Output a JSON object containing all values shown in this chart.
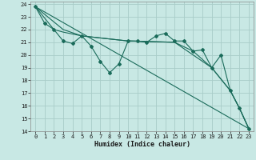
{
  "xlabel": "Humidex (Indice chaleur)",
  "xlim": [
    -0.5,
    23.5
  ],
  "ylim": [
    14,
    24.2
  ],
  "yticks": [
    14,
    15,
    16,
    17,
    18,
    19,
    20,
    21,
    22,
    23,
    24
  ],
  "xticks": [
    0,
    1,
    2,
    3,
    4,
    5,
    6,
    7,
    8,
    9,
    10,
    11,
    12,
    13,
    14,
    15,
    16,
    17,
    18,
    19,
    20,
    21,
    22,
    23
  ],
  "bg_color": "#c8e8e4",
  "grid_color": "#a8ccc8",
  "line_color": "#1a6b5a",
  "lines": [
    {
      "x": [
        0,
        1,
        2,
        3,
        4,
        5,
        6,
        7,
        8,
        9,
        10,
        11,
        12,
        13,
        14,
        15,
        16,
        17,
        18,
        19,
        20,
        21,
        22,
        23
      ],
      "y": [
        23.8,
        22.5,
        22.0,
        21.1,
        20.9,
        21.5,
        20.7,
        19.5,
        18.6,
        19.3,
        21.1,
        21.1,
        21.0,
        21.5,
        21.7,
        21.1,
        21.1,
        20.3,
        20.4,
        19.0,
        20.0,
        17.2,
        15.8,
        14.2
      ],
      "has_marker": true
    },
    {
      "x": [
        0,
        23
      ],
      "y": [
        23.8,
        14.2
      ],
      "has_marker": false
    },
    {
      "x": [
        0,
        3,
        5,
        10,
        15,
        19,
        21,
        22,
        23
      ],
      "y": [
        23.8,
        22.0,
        21.5,
        21.1,
        21.0,
        19.0,
        17.2,
        15.8,
        14.2
      ],
      "has_marker": false
    },
    {
      "x": [
        0,
        2,
        3,
        5,
        10,
        15,
        17,
        19,
        21,
        22,
        23
      ],
      "y": [
        23.8,
        22.0,
        21.8,
        21.5,
        21.1,
        21.0,
        20.3,
        19.0,
        17.2,
        15.8,
        14.2
      ],
      "has_marker": false
    }
  ]
}
